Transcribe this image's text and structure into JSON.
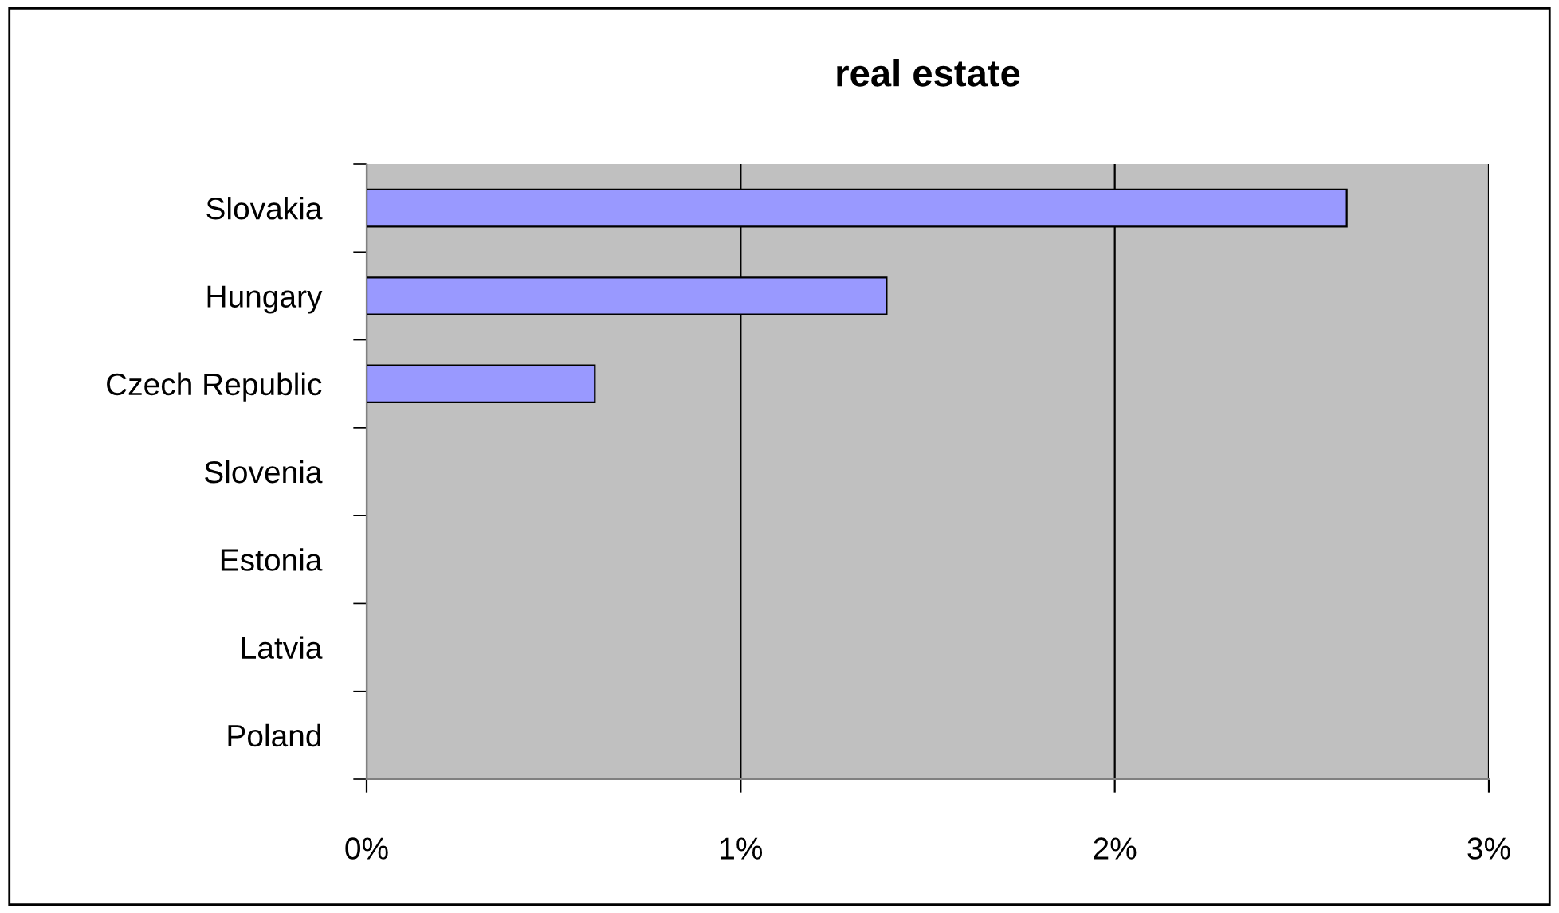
{
  "chart_data": {
    "type": "bar",
    "orientation": "horizontal",
    "title": "real estate",
    "categories": [
      "Slovakia",
      "Hungary",
      "Czech Republic",
      "Slovenia",
      "Estonia",
      "Latvia",
      "Poland"
    ],
    "values": [
      2.62,
      1.39,
      0.61,
      0,
      0,
      0,
      0
    ],
    "color": "#9999ff",
    "xlim": [
      0,
      3
    ],
    "xticks": [
      {
        "value": 0,
        "label": "0%"
      },
      {
        "value": 1,
        "label": "1%"
      },
      {
        "value": 2,
        "label": "2%"
      },
      {
        "value": 3,
        "label": "3%"
      }
    ],
    "grid": "x"
  }
}
